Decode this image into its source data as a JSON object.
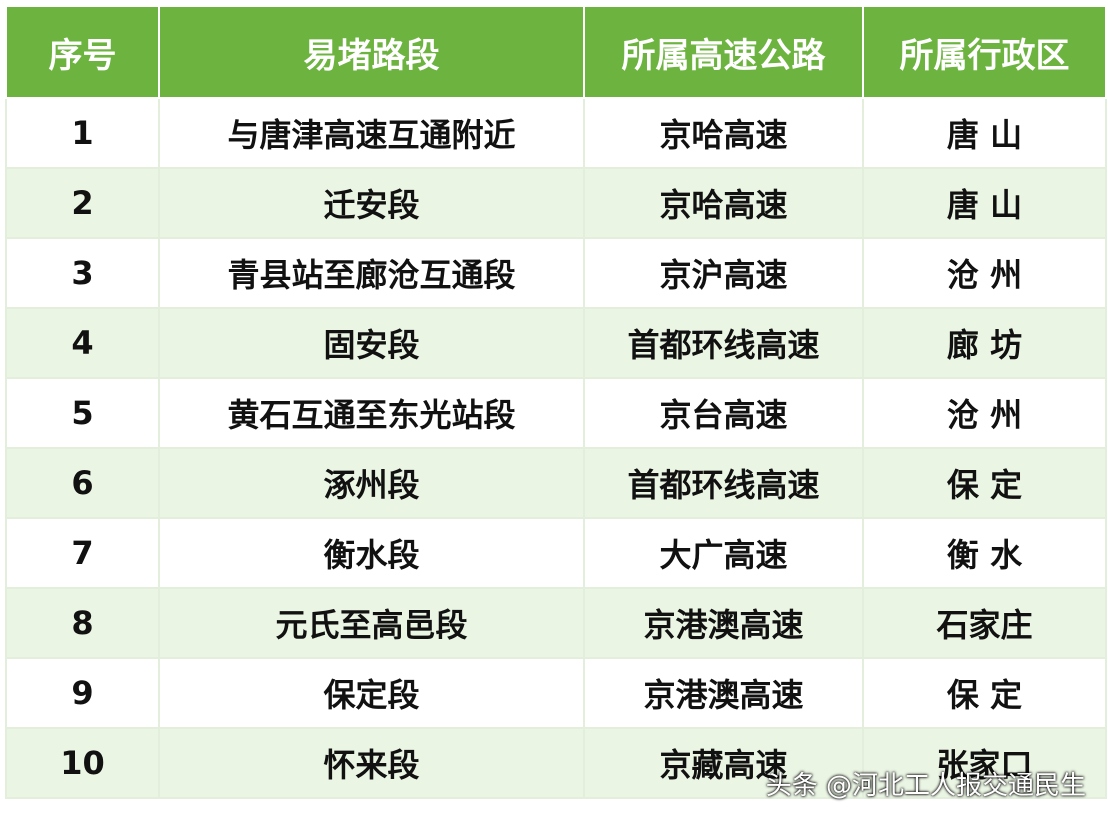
{
  "table": {
    "header": [
      "序号",
      "易堵路段",
      "所属高速公路",
      "所属行政区"
    ],
    "rows": [
      [
        "1",
        "与唐津高速互通附近",
        "京哈高速",
        "唐 山"
      ],
      [
        "2",
        "迁安段",
        "京哈高速",
        "唐 山"
      ],
      [
        "3",
        "青县站至廊沧互通段",
        "京沪高速",
        "沧 州"
      ],
      [
        "4",
        "固安段",
        "首都环线高速",
        "廊 坊"
      ],
      [
        "5",
        "黄石互通至东光站段",
        "京台高速",
        "沧 州"
      ],
      [
        "6",
        "涿州段",
        "首都环线高速",
        "保 定"
      ],
      [
        "7",
        "衡水段",
        "大广高速",
        "衡 水"
      ],
      [
        "8",
        "元氏至高邑段",
        "京港澳高速",
        "石家庄"
      ],
      [
        "9",
        "保定段",
        "京港澳高速",
        "保 定"
      ],
      [
        "10",
        "怀来段",
        "京藏高速",
        "张家口"
      ]
    ]
  },
  "watermark": "头条 @河北工人报交通民生"
}
